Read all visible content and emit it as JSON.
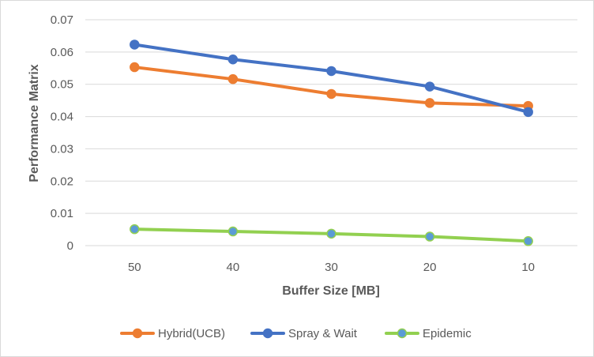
{
  "chart_data": {
    "type": "line",
    "title": "",
    "xlabel": "Buffer Size [MB]",
    "ylabel": "Performance Matrix",
    "categories": [
      "50",
      "40",
      "30",
      "20",
      "10"
    ],
    "ylim": [
      0,
      0.07
    ],
    "yticks": [
      "0",
      "0.01",
      "0.02",
      "0.03",
      "0.04",
      "0.05",
      "0.06",
      "0.07"
    ],
    "grid": true,
    "legend_position": "bottom",
    "series": [
      {
        "name": "Hybrid(UCB)",
        "color": "#ED7D31",
        "marker_fill": "#ED7D31",
        "values": [
          0.0553,
          0.0516,
          0.047,
          0.0442,
          0.0433
        ]
      },
      {
        "name": "Spray & Wait",
        "color": "#4472C4",
        "marker_fill": "#4472C4",
        "values": [
          0.0623,
          0.0577,
          0.0541,
          0.0493,
          0.0414
        ]
      },
      {
        "name": "Epidemic",
        "color": "#92D050",
        "marker_fill": "#5B9BD5",
        "values": [
          0.0051,
          0.0044,
          0.0037,
          0.0028,
          0.0014
        ]
      }
    ]
  }
}
